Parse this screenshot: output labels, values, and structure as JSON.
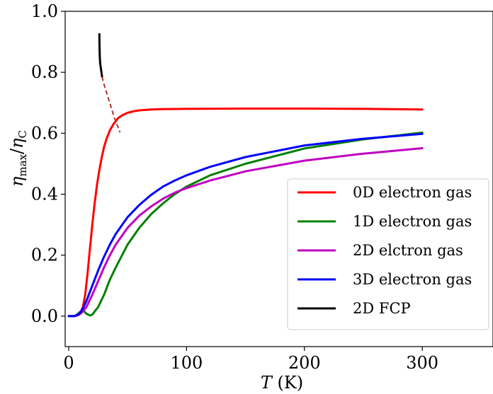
{
  "chart_data": {
    "type": "line",
    "xlabel_symbol": "T",
    "xlabel_unit": "(K)",
    "ylabel": "η_max/η_C",
    "ylabel_parts": {
      "eta": "η",
      "max": "max",
      "slash": "/",
      "C": "C"
    },
    "xlim": [
      -3,
      360
    ],
    "ylim": [
      -0.1,
      1.0
    ],
    "x_ticks": [
      0,
      100,
      200,
      300
    ],
    "y_ticks": [
      0.0,
      0.2,
      0.4,
      0.6,
      0.8,
      1.0
    ],
    "x_tick_labels": [
      "0",
      "100",
      "200",
      "300"
    ],
    "y_tick_labels": [
      "0.0",
      "0.2",
      "0.4",
      "0.6",
      "0.8",
      "1.0"
    ],
    "grid": false,
    "legend_position": "lower-right",
    "series": [
      {
        "name": "0D electron gas",
        "color": "#ff0000",
        "x": [
          0,
          5,
          8,
          10,
          12,
          14,
          16,
          18,
          20,
          22,
          24,
          26,
          28,
          30,
          32,
          35,
          38,
          42,
          46,
          50,
          55,
          60,
          70,
          80,
          100,
          150,
          200,
          250,
          300
        ],
        "y": [
          0,
          0,
          0.005,
          0.012,
          0.03,
          0.07,
          0.14,
          0.22,
          0.3,
          0.37,
          0.43,
          0.48,
          0.52,
          0.555,
          0.58,
          0.61,
          0.63,
          0.65,
          0.66,
          0.667,
          0.672,
          0.675,
          0.678,
          0.679,
          0.68,
          0.681,
          0.681,
          0.68,
          0.678
        ]
      },
      {
        "name": "1D electron gas",
        "color": "#008000",
        "x": [
          0,
          5,
          8,
          10,
          12,
          15,
          18,
          20,
          22,
          25,
          30,
          35,
          40,
          50,
          60,
          70,
          80,
          90,
          100,
          120,
          150,
          200,
          250,
          300
        ],
        "y": [
          0,
          0,
          0.008,
          0.015,
          0.02,
          0.008,
          0.002,
          0.005,
          0.015,
          0.03,
          0.07,
          0.12,
          0.16,
          0.235,
          0.29,
          0.335,
          0.37,
          0.4,
          0.425,
          0.462,
          0.5,
          0.55,
          0.58,
          0.602
        ]
      },
      {
        "name": "2D elctron gas",
        "color": "#c000c0",
        "x": [
          0,
          5,
          8,
          10,
          12,
          15,
          20,
          25,
          30,
          35,
          40,
          50,
          60,
          70,
          80,
          90,
          100,
          120,
          150,
          200,
          250,
          300
        ],
        "y": [
          0,
          0,
          0.003,
          0.008,
          0.015,
          0.03,
          0.07,
          0.115,
          0.16,
          0.2,
          0.235,
          0.29,
          0.33,
          0.36,
          0.385,
          0.405,
          0.42,
          0.445,
          0.475,
          0.51,
          0.533,
          0.551
        ]
      },
      {
        "name": "3D electron gas",
        "color": "#0000ff",
        "x": [
          0,
          5,
          8,
          10,
          12,
          15,
          20,
          25,
          30,
          35,
          40,
          50,
          60,
          70,
          80,
          90,
          100,
          120,
          150,
          200,
          250,
          300
        ],
        "y": [
          0,
          0,
          0.005,
          0.012,
          0.025,
          0.05,
          0.1,
          0.15,
          0.195,
          0.235,
          0.27,
          0.325,
          0.365,
          0.398,
          0.425,
          0.445,
          0.462,
          0.49,
          0.522,
          0.56,
          0.582,
          0.598
        ]
      },
      {
        "name": "2D FCP",
        "color": "#000000",
        "x": [
          26,
          26.1,
          26.2,
          26.4,
          26.7,
          27.2,
          27.8,
          28.3
        ],
        "y": [
          0.925,
          0.9,
          0.875,
          0.85,
          0.83,
          0.815,
          0.8,
          0.785
        ]
      }
    ],
    "dashed_extension": {
      "color": "#b03030",
      "x": [
        28.3,
        30,
        32,
        34,
        36,
        38,
        40,
        42,
        43.5
      ],
      "y": [
        0.785,
        0.76,
        0.735,
        0.71,
        0.685,
        0.66,
        0.638,
        0.618,
        0.603
      ]
    }
  }
}
